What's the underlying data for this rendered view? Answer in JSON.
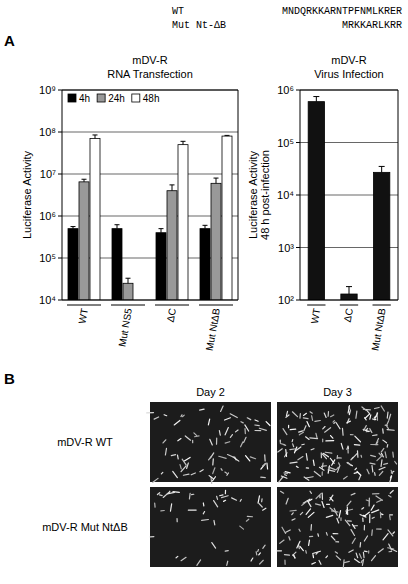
{
  "sequences": [
    {
      "name": "WT",
      "sequence": "MNDQRKKARNTPFNMLKRER"
    },
    {
      "name": "Mut Nt-ΔB",
      "sequence": "MRKKARLKRR"
    }
  ],
  "panel_labels": [
    "A",
    "B"
  ],
  "chart_data": [
    {
      "type": "bar",
      "title": "mDV-R",
      "subtitle": "RNA Transfection",
      "y_label": "Luciferase Activity",
      "categories": [
        "WT",
        "Mut NS5",
        "ΔC",
        "Mut NtΔB"
      ],
      "series": [
        {
          "name": "4h",
          "color": "#000000",
          "values": [
            500000,
            500000,
            400000,
            500000
          ],
          "errors": [
            60000,
            120000,
            100000,
            100000
          ]
        },
        {
          "name": "24h",
          "color": "#999999",
          "values": [
            6500000,
            25000,
            4000000,
            6000000
          ],
          "errors": [
            1000000,
            8000,
            1500000,
            2000000
          ]
        },
        {
          "name": "48h",
          "color": "#ffffff",
          "values": [
            70000000,
            null,
            50000000,
            80000000
          ],
          "errors": [
            15000000,
            null,
            10000000,
            3000000
          ]
        }
      ],
      "log": "y",
      "ylim": [
        10000,
        1000000000
      ],
      "yticks": [
        {
          "value": 10000,
          "label": "10⁴"
        },
        {
          "value": 100000,
          "label": "10⁵"
        },
        {
          "value": 1000000,
          "label": "10⁶"
        },
        {
          "value": 10000000,
          "label": "10⁷"
        },
        {
          "value": 100000000,
          "label": "10⁸"
        },
        {
          "value": 1000000000,
          "label": "10⁹"
        }
      ],
      "grid": true,
      "legend": "upper left"
    },
    {
      "type": "bar",
      "title": "mDV-R",
      "subtitle": "Virus Infection",
      "y_label": "Luciferase Activity 48 h post-infection",
      "categories": [
        "WT",
        "ΔC",
        "Mut NtΔB"
      ],
      "values": [
        600000,
        130,
        27000
      ],
      "errors": [
        150000,
        50,
        8000
      ],
      "color": "#111111",
      "log": "y",
      "ylim": [
        100,
        1000000
      ],
      "yticks": [
        {
          "value": 100,
          "label": "10²"
        },
        {
          "value": 1000,
          "label": "10³"
        },
        {
          "value": 10000,
          "label": "10⁴"
        },
        {
          "value": 100000,
          "label": "10⁵"
        },
        {
          "value": 1000000,
          "label": "10⁶"
        }
      ],
      "grid": true
    }
  ],
  "panel_b": {
    "columns": [
      "Day 2",
      "Day 3"
    ],
    "rows": [
      "mDV-R WT",
      "mDV-R Mut NtΔB"
    ]
  }
}
